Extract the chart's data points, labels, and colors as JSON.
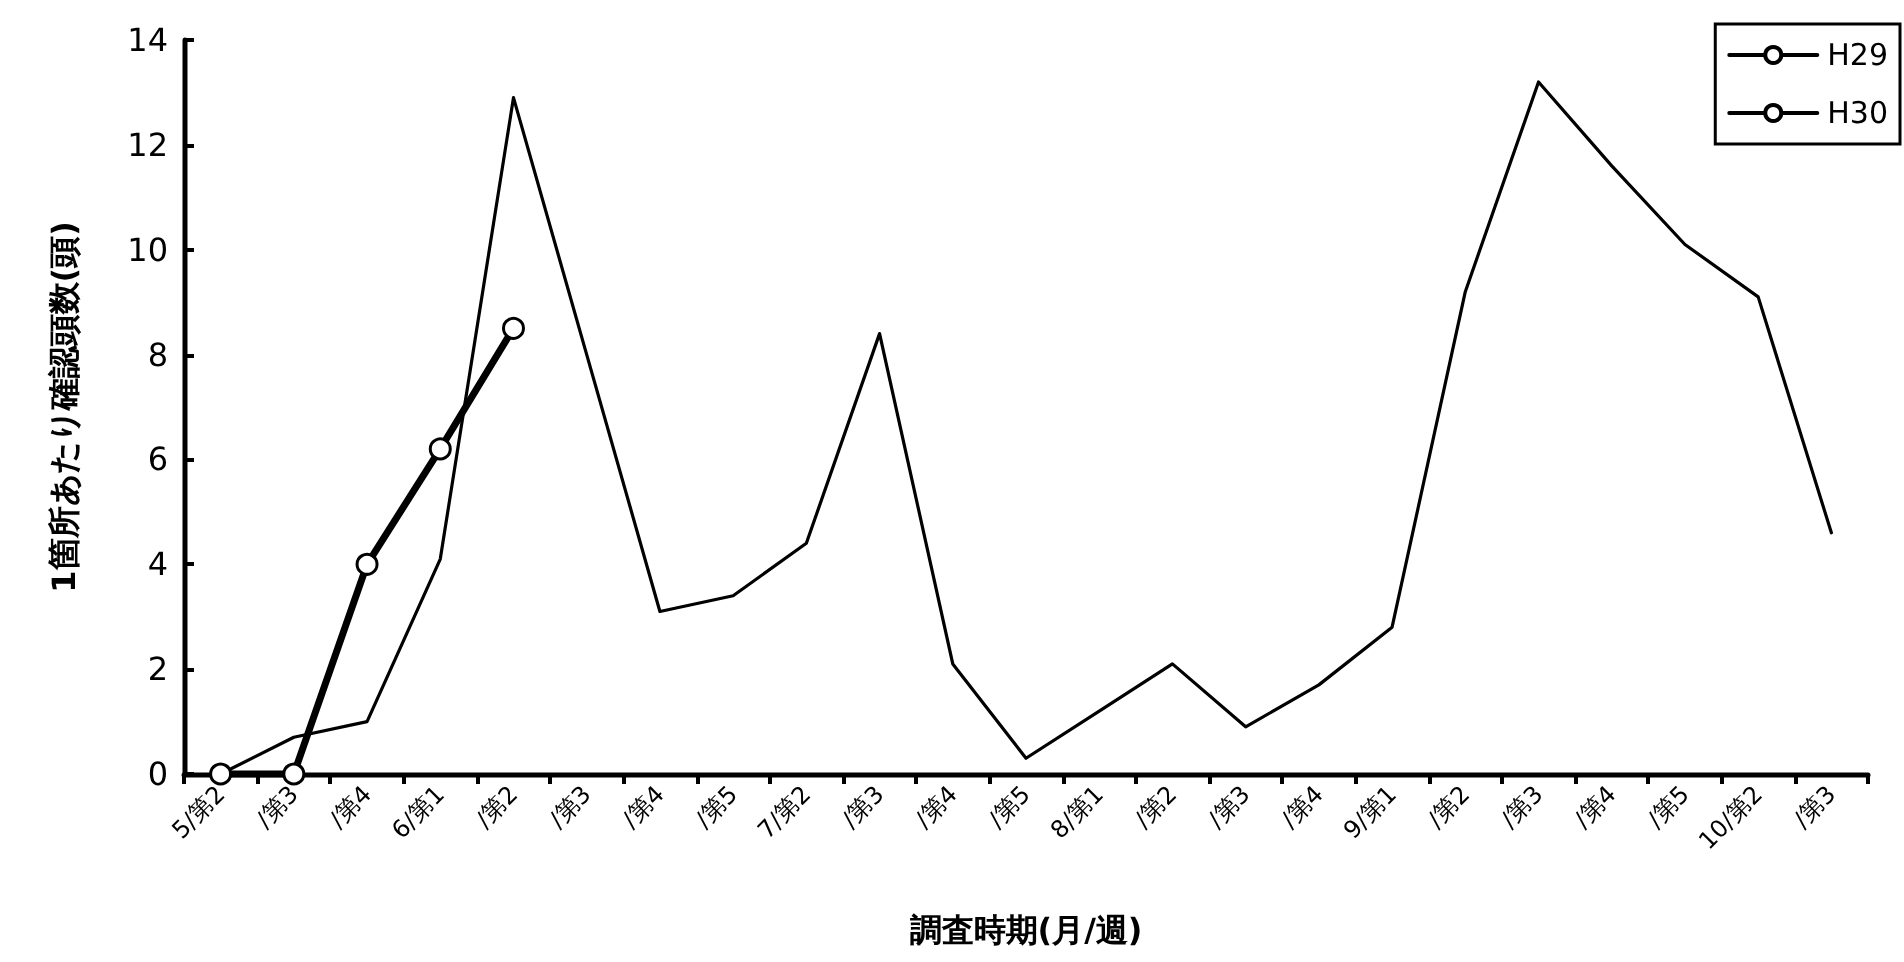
{
  "chart_data": {
    "type": "line",
    "xlabel": "調査時期(月/週)",
    "ylabel": "1箇所あたり確認頭数(頭)",
    "categories": [
      "5/第2",
      "/第3",
      "/第4",
      "6/第1",
      "/第2",
      "/第3",
      "/第4",
      "/第5",
      "7/第2",
      "/第3",
      "/第4",
      "/第5",
      "8/第1",
      "/第2",
      "/第3",
      "/第4",
      "9/第1",
      "/第2",
      "/第3",
      "/第4",
      "/第5",
      "10/第2",
      "/第3"
    ],
    "series": [
      {
        "name": "H29",
        "color": "#000000",
        "marker": "none",
        "values": [
          0,
          0.7,
          1.0,
          4.1,
          12.9,
          8.0,
          3.1,
          3.4,
          4.4,
          8.4,
          2.1,
          0.3,
          1.2,
          2.1,
          0.9,
          1.7,
          2.8,
          9.2,
          13.2,
          11.6,
          10.1,
          9.1,
          4.6
        ]
      },
      {
        "name": "H30",
        "color": "#000000",
        "marker": "circle",
        "values": [
          0,
          0,
          4.0,
          6.2,
          8.5,
          null,
          null,
          null,
          null,
          null,
          null,
          null,
          null,
          null,
          null,
          null,
          null,
          null,
          null,
          null,
          null,
          null,
          null
        ]
      }
    ],
    "ylim": [
      0,
      14
    ],
    "yticks": [
      0,
      2,
      4,
      6,
      8,
      10,
      12,
      14
    ],
    "grid": false,
    "legend": "top right"
  }
}
